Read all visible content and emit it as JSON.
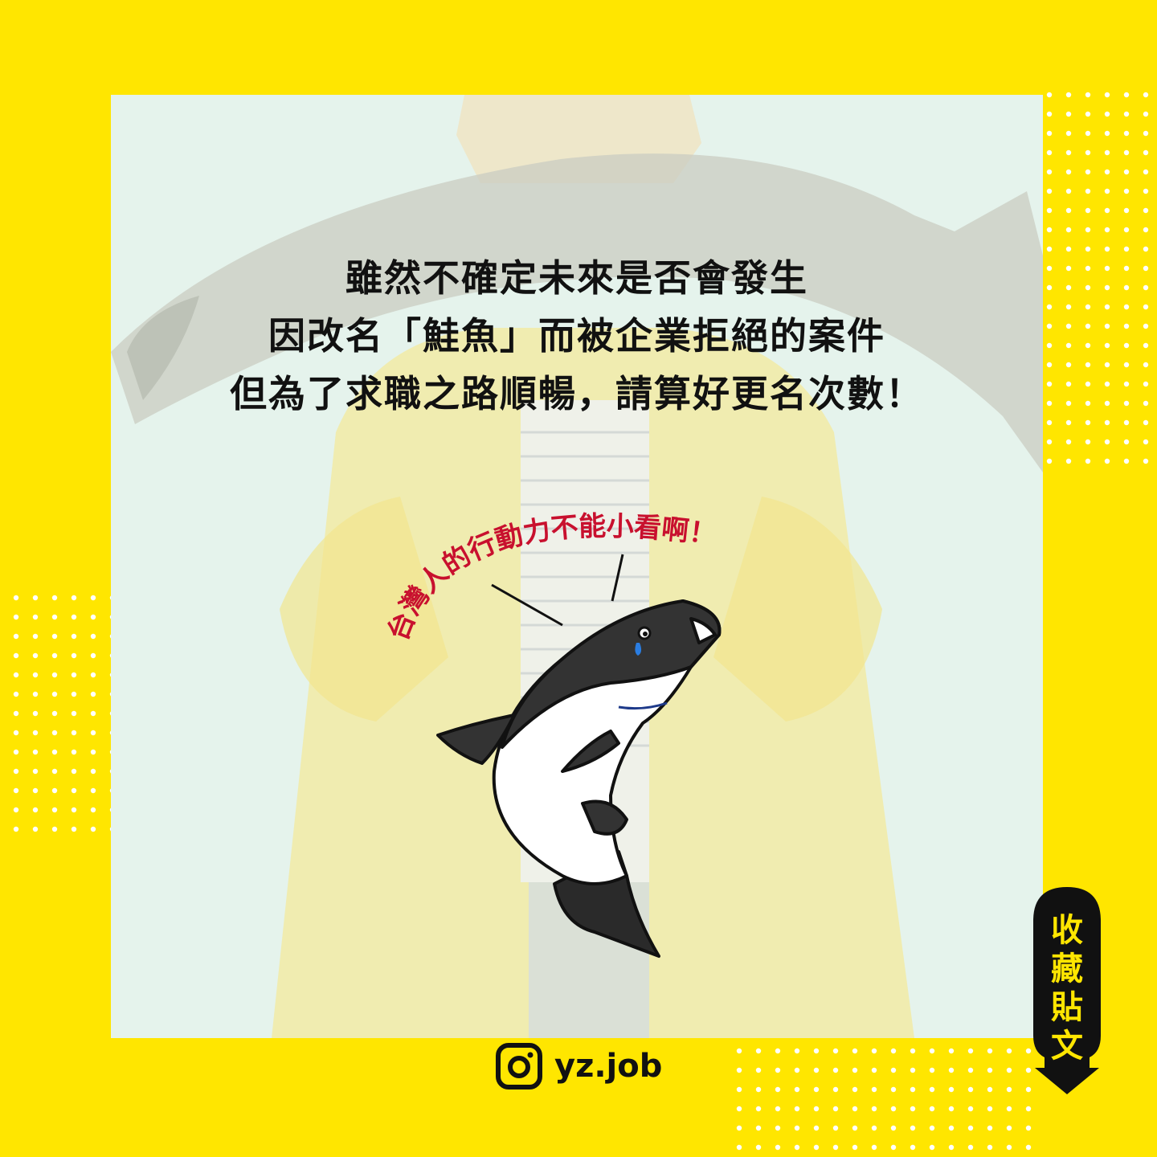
{
  "headline": {
    "line1": "雖然不確定未來是否會發生",
    "line2": "因改名「鮭魚」而被企業拒絕的案件",
    "line3": "但為了求職之路順暢，請算好更名次數！"
  },
  "arc_caption": "台灣人的行動力不能小看啊！",
  "save_badge": {
    "chars": [
      "收",
      "藏",
      "貼",
      "文"
    ]
  },
  "instagram": {
    "icon": "instagram-icon",
    "handle": "yz.job"
  },
  "colors": {
    "background": "#ffe600",
    "panel": "#e5f3ec",
    "caption": "#c8102e",
    "ink": "#111111"
  }
}
